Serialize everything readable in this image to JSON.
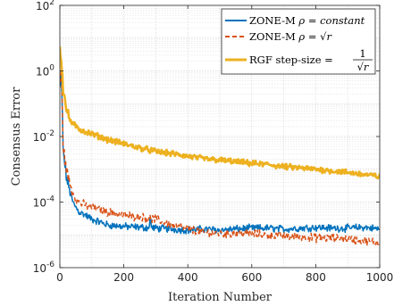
{
  "chart_data": {
    "type": "line",
    "xlabel": "Iteration Number",
    "ylabel": "Consensus Error",
    "xlim": [
      0,
      1000
    ],
    "ylim": [
      1e-06,
      100
    ],
    "yscale": "log",
    "grid": true,
    "legend_position": "top-right",
    "x_ticks": [
      0,
      200,
      400,
      600,
      800,
      1000
    ],
    "y_ticks": [
      {
        "value": 1e-06,
        "base": "10",
        "exp": "-6"
      },
      {
        "value": 0.0001,
        "base": "10",
        "exp": "-4"
      },
      {
        "value": 0.01,
        "base": "10",
        "exp": "-2"
      },
      {
        "value": 1,
        "base": "10",
        "exp": "0"
      },
      {
        "value": 100,
        "base": "10",
        "exp": "2"
      }
    ],
    "series": [
      {
        "name": "ZONE-M ρ = constant",
        "legend_prefix": "ZONE-M ",
        "legend_math": "ρ = constant",
        "color": "#0072BD",
        "dash": "solid",
        "x": [
          0,
          5,
          10,
          20,
          30,
          40,
          50,
          60,
          80,
          100,
          150,
          200,
          250,
          300,
          350,
          400,
          450,
          500,
          550,
          600,
          650,
          700,
          750,
          800,
          850,
          900,
          950,
          1000
        ],
        "y": [
          0.3,
          0.8,
          0.004,
          0.0006,
          0.00025,
          0.0001,
          7e-05,
          5e-05,
          4e-05,
          3e-05,
          2e-05,
          1.8e-05,
          1.7e-05,
          1.6e-05,
          1.5e-05,
          1.4e-05,
          1.5e-05,
          1.4e-05,
          1.5e-05,
          1.6e-05,
          1.6e-05,
          1.5e-05,
          1.6e-05,
          1.7e-05,
          1.6e-05,
          1.6e-05,
          1.7e-05,
          1.5e-05
        ]
      },
      {
        "name": "ZONE-M ρ = √r",
        "legend_prefix": "ZONE-M ",
        "legend_math": "ρ = √r",
        "color": "#D95319",
        "dash": "dashed",
        "x": [
          0,
          5,
          10,
          20,
          30,
          40,
          50,
          60,
          80,
          100,
          150,
          200,
          250,
          300,
          350,
          400,
          450,
          500,
          550,
          600,
          650,
          700,
          750,
          800,
          850,
          900,
          950,
          1000
        ],
        "y": [
          0.4,
          1.0,
          0.006,
          0.001,
          0.0004,
          0.0002,
          0.00012,
          0.0001,
          8e-05,
          7e-05,
          5e-05,
          4e-05,
          3.5e-05,
          3e-05,
          2e-05,
          1.5e-05,
          1.2e-05,
          1.1e-05,
          1.1e-05,
          1.1e-05,
          1e-05,
          9e-06,
          9e-06,
          8e-06,
          8e-06,
          7.5e-06,
          6.5e-06,
          6e-06
        ]
      },
      {
        "name": "RGF step-size = 1/√r",
        "legend_prefix": "RGF step-size = ",
        "legend_num": "1",
        "legend_den": "√r",
        "color": "#EDB120",
        "dash": "solid",
        "x": [
          0,
          5,
          10,
          20,
          30,
          40,
          50,
          60,
          80,
          100,
          150,
          200,
          250,
          300,
          350,
          400,
          450,
          500,
          550,
          600,
          650,
          700,
          750,
          800,
          850,
          900,
          950,
          1000
        ],
        "y": [
          5,
          2,
          0.3,
          0.07,
          0.035,
          0.025,
          0.02,
          0.017,
          0.014,
          0.012,
          0.008,
          0.006,
          0.0045,
          0.0035,
          0.003,
          0.0025,
          0.0021,
          0.0019,
          0.0017,
          0.0015,
          0.0014,
          0.0012,
          0.0011,
          0.001,
          0.0009,
          0.0008,
          0.0007,
          0.0006
        ]
      }
    ]
  }
}
